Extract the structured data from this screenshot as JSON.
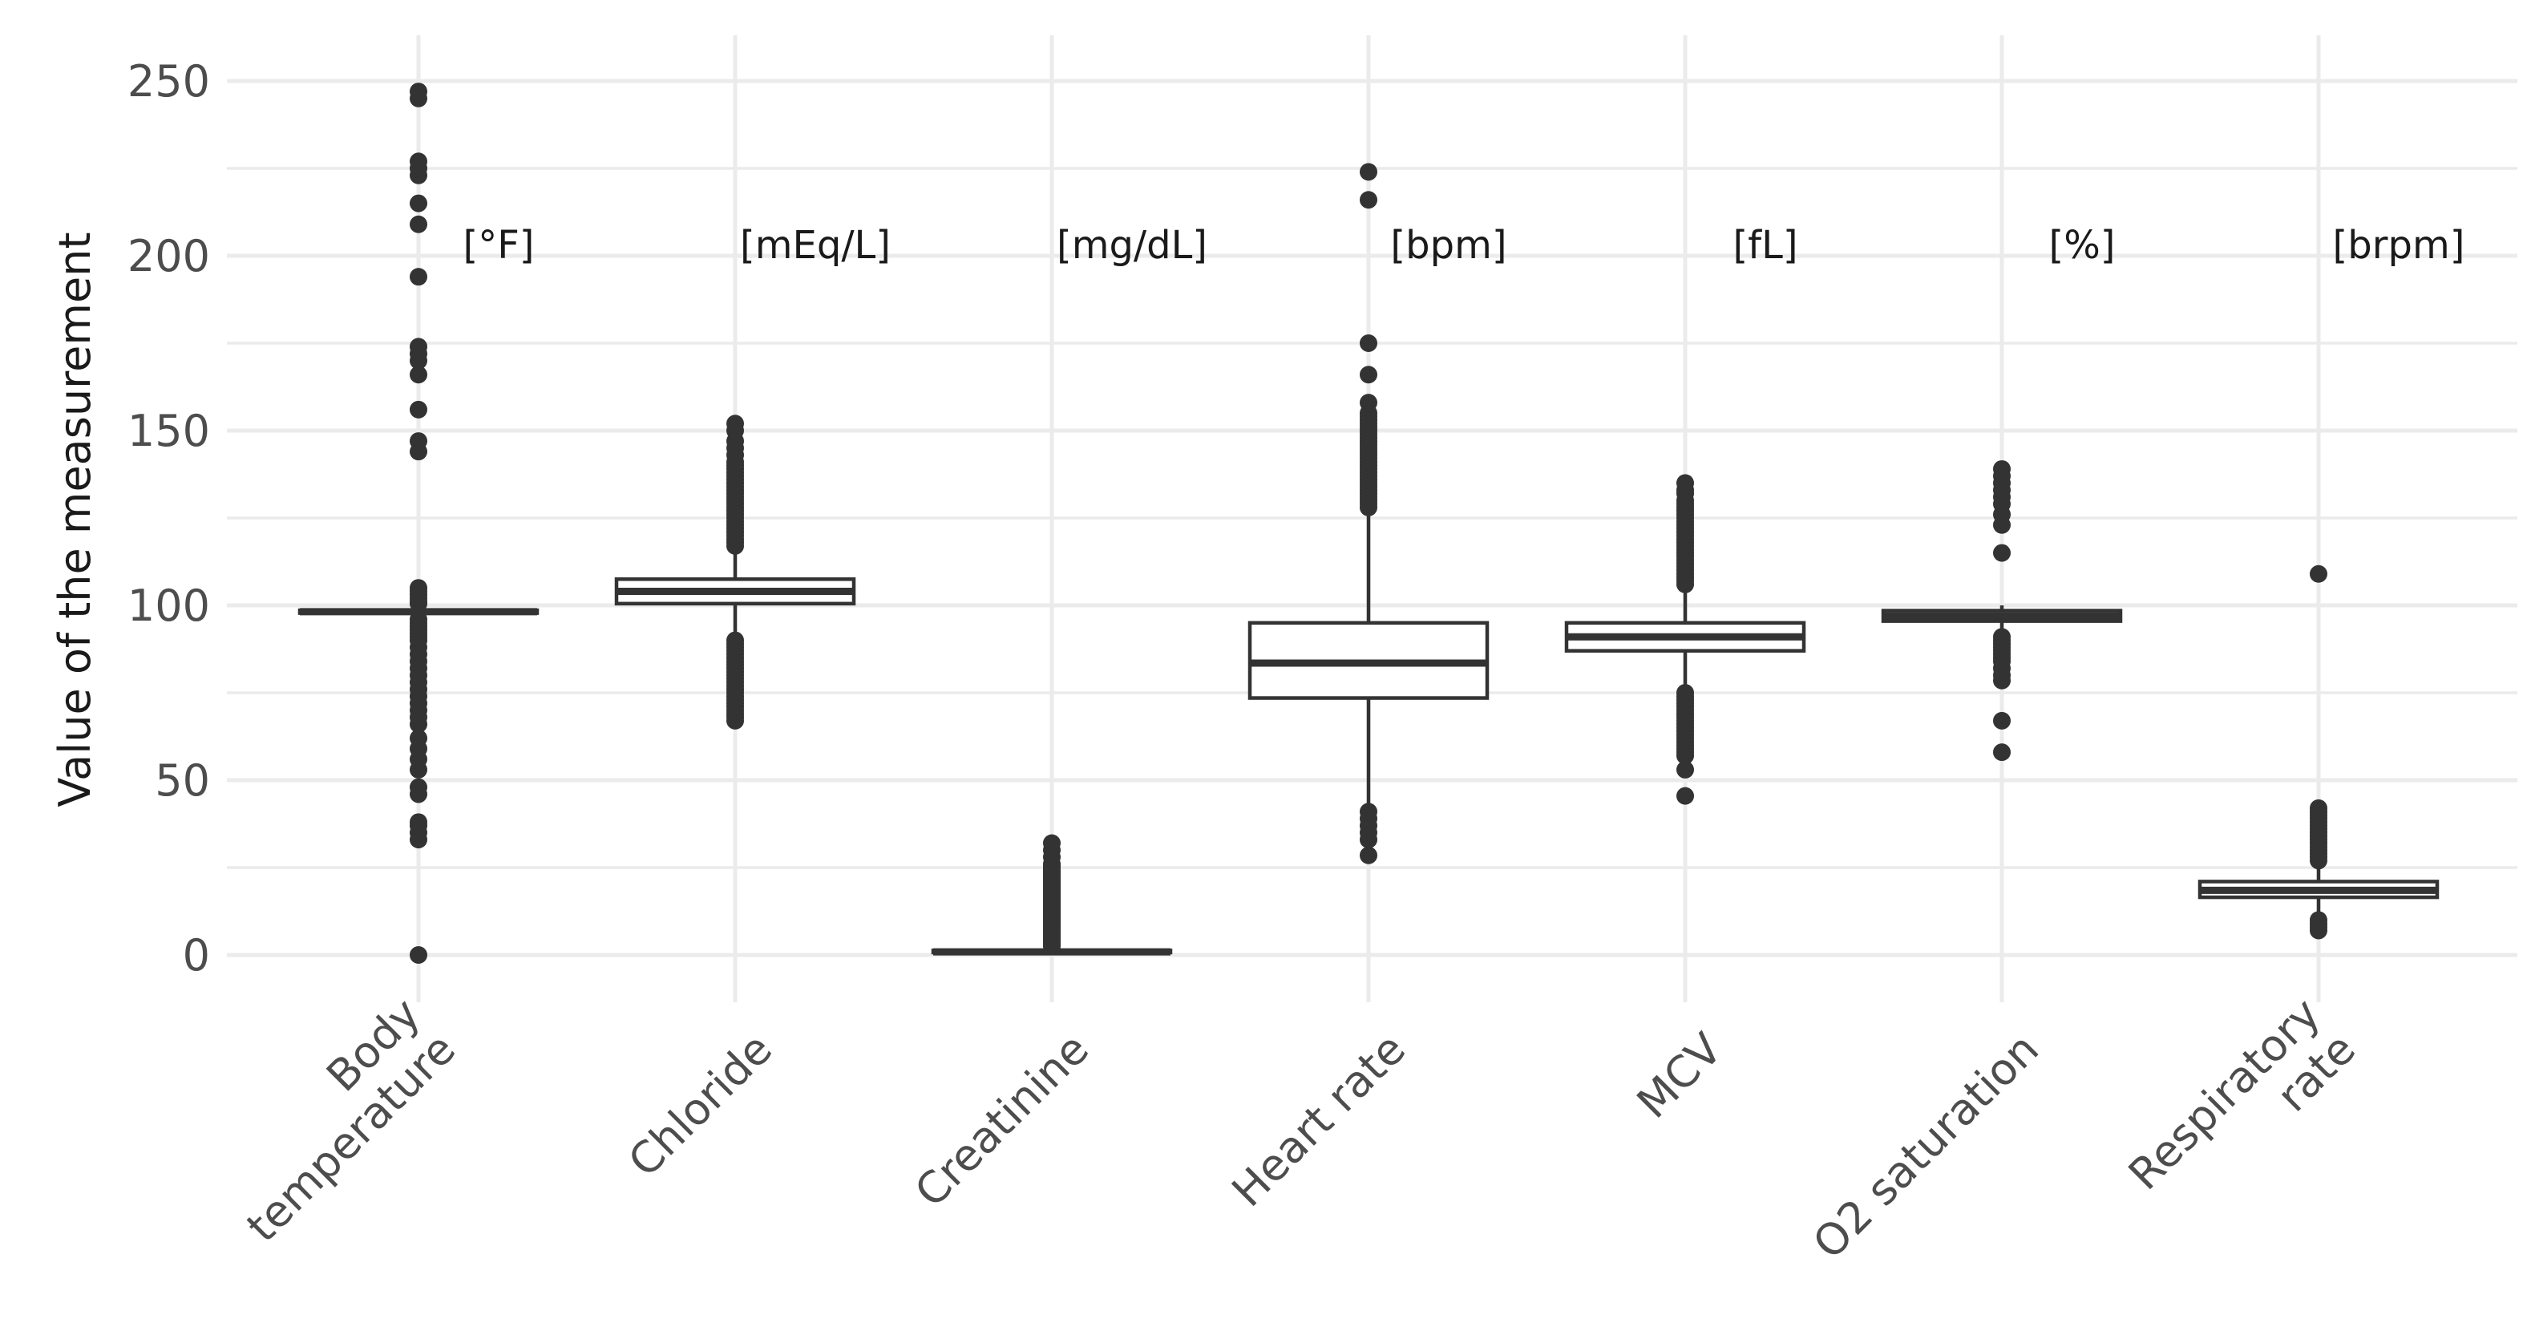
{
  "chart_data": {
    "type": "boxplot",
    "title": "",
    "xlabel": "",
    "ylabel": "Value of the measurement",
    "ylim": [
      -12,
      262
    ],
    "y_ticks": [
      0,
      50,
      100,
      150,
      200,
      250
    ],
    "y_tick_labels": [
      "0",
      "50",
      "100",
      "150",
      "200",
      "250"
    ],
    "grid": true,
    "categories": [
      {
        "name": "Body temperature",
        "label_lines": [
          "Body",
          "temperature"
        ],
        "unit": "[°F]",
        "q1": 97.8,
        "median": 98.2,
        "q3": 98.6,
        "whisker_low": 96.5,
        "whisker_high": 99.9,
        "outliers": [
          0,
          33,
          35,
          37,
          38,
          46,
          48,
          53,
          56,
          59,
          62,
          66,
          68,
          70,
          72,
          74,
          76,
          78,
          80,
          82,
          84,
          86,
          88,
          90,
          91,
          92,
          93,
          94,
          95,
          96,
          100.5,
          101,
          102,
          103,
          104,
          105,
          144,
          147,
          156,
          166,
          170,
          172,
          174,
          194,
          209,
          215,
          223,
          225,
          227,
          245,
          247
        ]
      },
      {
        "name": "Chloride",
        "label_lines": [
          "Chloride"
        ],
        "unit": "[mEq/L]",
        "q1": 100.5,
        "median": 104,
        "q3": 107.5,
        "whisker_low": 90.5,
        "whisker_high": 116.5,
        "outliers": [
          67,
          68,
          69,
          70,
          71,
          72,
          73,
          74,
          75,
          76,
          77,
          78,
          79,
          80,
          81,
          82,
          83,
          84,
          85,
          86,
          87,
          88,
          89,
          90,
          117,
          118,
          119,
          120,
          121,
          122,
          123,
          124,
          125,
          126,
          127,
          128,
          129,
          130,
          131,
          132,
          133,
          134,
          135,
          136,
          137,
          138,
          139,
          140,
          141,
          143,
          145,
          147,
          150,
          152
        ]
      },
      {
        "name": "Creatinine",
        "label_lines": [
          "Creatinine"
        ],
        "unit": "[mg/dL]",
        "q1": 0.7,
        "median": 0.9,
        "q3": 1.3,
        "whisker_low": 0.1,
        "whisker_high": 2.2,
        "outliers": [
          2.5,
          3,
          3.5,
          4,
          4.5,
          5,
          5.5,
          6,
          6.5,
          7,
          7.5,
          8,
          8.5,
          9,
          9.5,
          10,
          10.5,
          11,
          11.5,
          12,
          12.5,
          13,
          13.5,
          14,
          14.5,
          15,
          15.5,
          16,
          16.5,
          17,
          17.5,
          18,
          18.5,
          19,
          19.5,
          20,
          20.5,
          21,
          21.5,
          22,
          22.5,
          23,
          23.5,
          24,
          24.5,
          25,
          25.5,
          26,
          28,
          30,
          32
        ]
      },
      {
        "name": "Heart rate",
        "label_lines": [
          "Heart rate"
        ],
        "unit": "[bpm]",
        "q1": 73.5,
        "median": 83.5,
        "q3": 95,
        "whisker_low": 42,
        "whisker_high": 127,
        "outliers": [
          28.5,
          33,
          35,
          37,
          39,
          41,
          128,
          129,
          130,
          131,
          132,
          133,
          134,
          135,
          136,
          137,
          138,
          139,
          140,
          141,
          142,
          143,
          144,
          145,
          146,
          147,
          148,
          149,
          150,
          151,
          152,
          153,
          154,
          155,
          158,
          166,
          175,
          216,
          224
        ]
      },
      {
        "name": "MCV",
        "label_lines": [
          "MCV"
        ],
        "unit": "[fL]",
        "q1": 87,
        "median": 91,
        "q3": 95,
        "whisker_low": 76,
        "whisker_high": 105,
        "outliers": [
          45.5,
          53,
          57,
          58,
          59,
          60,
          61,
          62,
          63,
          64,
          65,
          66,
          67,
          68,
          69,
          70,
          71,
          72,
          73,
          74,
          75,
          106,
          107,
          108,
          109,
          110,
          111,
          112,
          113,
          114,
          115,
          116,
          117,
          118,
          119,
          120,
          121,
          122,
          123,
          124,
          125,
          126,
          127,
          128,
          129,
          130,
          132,
          133,
          135
        ]
      },
      {
        "name": "O2 saturation",
        "label_lines": [
          "O2 saturation"
        ],
        "unit": "[%]",
        "q1": 95.5,
        "median": 97,
        "q3": 98.5,
        "whisker_low": 92,
        "whisker_high": 100,
        "outliers": [
          58,
          67,
          78.5,
          80,
          82,
          84,
          85,
          86,
          87,
          88,
          89,
          90,
          91,
          115,
          123,
          126,
          129,
          131,
          133,
          135,
          137,
          139
        ]
      },
      {
        "name": "Respiratory rate",
        "label_lines": [
          "Respiratory",
          "rate"
        ],
        "unit": "[brpm]",
        "q1": 16.5,
        "median": 18.5,
        "q3": 21,
        "whisker_low": 11,
        "whisker_high": 26,
        "outliers": [
          7,
          8,
          9,
          10,
          27,
          28,
          29,
          30,
          31,
          32,
          33,
          34,
          35,
          36,
          37,
          38,
          39,
          40,
          41,
          42,
          109
        ]
      }
    ]
  }
}
